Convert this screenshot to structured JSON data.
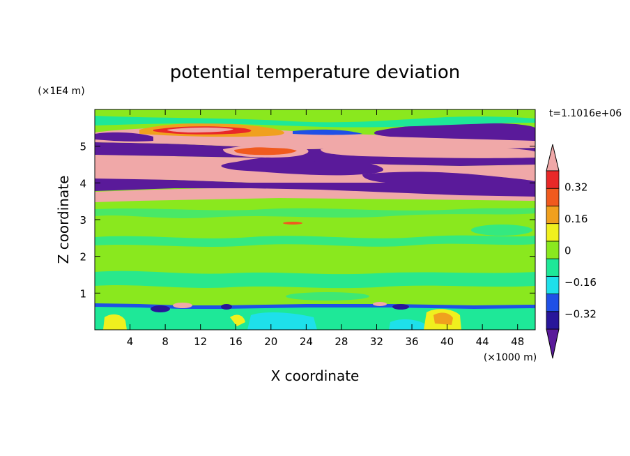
{
  "chart_data": {
    "type": "heatmap",
    "title": "potential temperature deviation",
    "xlabel": "X coordinate",
    "ylabel": "Z coordinate",
    "x_unit": "(×1000 m)",
    "y_unit": "(×1E4 m)",
    "time_label": "t=1.1016e+06",
    "xlim": [
      0,
      50
    ],
    "ylim": [
      0,
      6
    ],
    "x_ticks": [
      4,
      8,
      12,
      16,
      20,
      24,
      28,
      32,
      36,
      40,
      44,
      48
    ],
    "y_ticks": [
      1,
      2,
      3,
      4,
      5
    ],
    "colorbar": {
      "levels": [
        -0.4,
        -0.32,
        -0.24,
        -0.16,
        -0.08,
        0,
        0.08,
        0.16,
        0.24,
        0.32,
        0.4
      ],
      "labels": [
        "0.32",
        "0.16",
        "0",
        "−0.16",
        "−0.32"
      ],
      "label_values": [
        0.32,
        0.16,
        0,
        -0.16,
        -0.32
      ],
      "colors_low_to_high": [
        "#5a1a9a",
        "#28169a",
        "#1f50e6",
        "#1ee0ea",
        "#1ee898",
        "#8ae81e",
        "#f0f01e",
        "#f0a01e",
        "#f05a1e",
        "#e82828",
        "#f0a8a8"
      ],
      "extend": "both"
    },
    "bands": [
      {
        "z": [
          0.0,
          0.6
        ],
        "dominant": "0.04",
        "note": "green with cyan and yellow patches"
      },
      {
        "z": [
          0.6,
          0.75
        ],
        "dominant": "-0.3",
        "note": "dark blue/purple streak with pink spots"
      },
      {
        "z": [
          0.75,
          3.5
        ],
        "dominant": "0.04",
        "note": "light green with green/cyan specks"
      },
      {
        "z": [
          3.5,
          3.8
        ],
        "dominant": "0.45",
        "note": "pink layer"
      },
      {
        "z": [
          3.8,
          4.0
        ],
        "dominant": "-0.45",
        "note": "purple layer"
      },
      {
        "z": [
          4.0,
          4.6
        ],
        "dominant": "0.45",
        "note": "pink with purple lenses"
      },
      {
        "z": [
          4.6,
          5.0
        ],
        "dominant": "-0.45",
        "note": "purple with pink lenses"
      },
      {
        "z": [
          5.0,
          5.5
        ],
        "dominant": "0.45",
        "note": "pink/red/orange structures and purple lens"
      },
      {
        "z": [
          5.5,
          6.0
        ],
        "dominant": "0.0",
        "note": "light green top"
      }
    ]
  }
}
